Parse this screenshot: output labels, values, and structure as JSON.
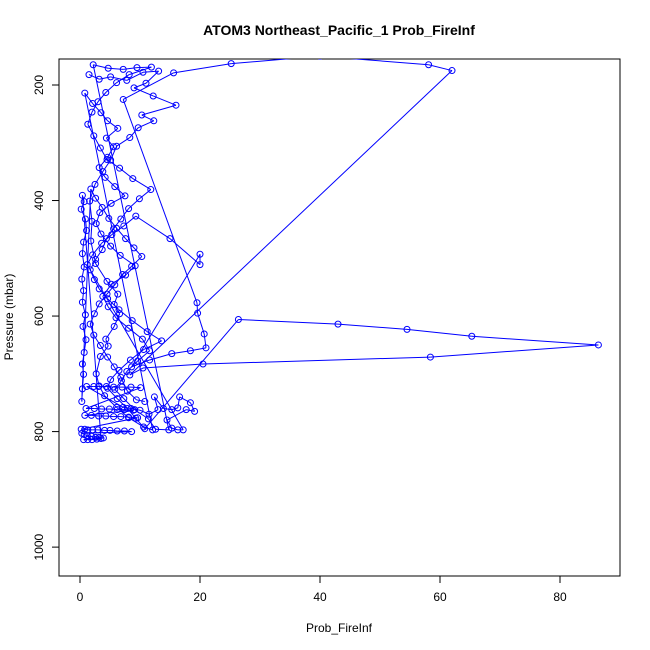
{
  "chart_data": {
    "type": "scatter",
    "title": "ATOM3 Northeast_Pacific_1 Prob_FireInf",
    "xlabel": "Prob_FireInf",
    "ylabel": "Pressure (mbar)",
    "xlim": [
      -3.5,
      90
    ],
    "ylim": [
      1050,
      155
    ],
    "y_reversed": true,
    "x_ticks": [
      0,
      20,
      40,
      60,
      80
    ],
    "y_ticks": [
      200,
      400,
      600,
      800,
      1000
    ],
    "grid": false,
    "legend": "none",
    "marker": "open-circle",
    "connected": true,
    "series": [
      {
        "color": "#0000ff",
        "points": [
          [
            1.5,
            182
          ],
          [
            3.2,
            190
          ],
          [
            5.1,
            186
          ],
          [
            7.8,
            192
          ],
          [
            10.5,
            178
          ],
          [
            13.1,
            176
          ],
          [
            11.0,
            197
          ],
          [
            9.0,
            205
          ],
          [
            12.2,
            219
          ],
          [
            16.0,
            235
          ],
          [
            10.3,
            252
          ],
          [
            12.3,
            262
          ],
          [
            9.7,
            274
          ],
          [
            8.3,
            291
          ],
          [
            6.1,
            306
          ],
          [
            5.1,
            330
          ],
          [
            3.8,
            350
          ],
          [
            2.5,
            372
          ],
          [
            1.6,
            401
          ],
          [
            2.0,
            436
          ],
          [
            1.8,
            470
          ],
          [
            2.6,
            509
          ],
          [
            4.5,
            540
          ],
          [
            6.3,
            562
          ],
          [
            5.7,
            580
          ],
          [
            6.6,
            596
          ],
          [
            5.7,
            618
          ],
          [
            4.3,
            640
          ],
          [
            4.7,
            652
          ],
          [
            3.4,
            670
          ],
          [
            2.7,
            700
          ],
          [
            3.2,
            721
          ],
          [
            4.1,
            738
          ],
          [
            6.1,
            758
          ],
          [
            8.1,
            776
          ],
          [
            10.6,
            792
          ],
          [
            12.1,
            797
          ],
          [
            0.8,
            214
          ],
          [
            2.1,
            232
          ],
          [
            3.5,
            248
          ],
          [
            4.6,
            262
          ],
          [
            6.3,
            275
          ],
          [
            4.4,
            292
          ],
          [
            5.6,
            307
          ],
          [
            4.6,
            325
          ],
          [
            3.2,
            343
          ],
          [
            4.2,
            360
          ],
          [
            5.8,
            376
          ],
          [
            7.5,
            392
          ],
          [
            5.2,
            405
          ],
          [
            3.3,
            421
          ],
          [
            2.7,
            440
          ],
          [
            3.5,
            458
          ],
          [
            5.1,
            479
          ],
          [
            6.7,
            495
          ],
          [
            9.2,
            513
          ],
          [
            7.6,
            529
          ],
          [
            5.2,
            545
          ],
          [
            3.8,
            566
          ],
          [
            4.7,
            584
          ],
          [
            6.0,
            603
          ],
          [
            8.1,
            621
          ],
          [
            10.4,
            640
          ],
          [
            11.6,
            660
          ],
          [
            9.6,
            678
          ],
          [
            7.8,
            696
          ],
          [
            6.9,
            712
          ],
          [
            5.8,
            727
          ],
          [
            7.3,
            743
          ],
          [
            9.1,
            762
          ],
          [
            11.4,
            778
          ],
          [
            12.6,
            796
          ],
          [
            14.8,
            797
          ],
          [
            2.2,
            165
          ],
          [
            4.7,
            171
          ],
          [
            7.2,
            173
          ],
          [
            9.5,
            170
          ],
          [
            11.9,
            169
          ],
          [
            8.2,
            182
          ],
          [
            6.1,
            196
          ],
          [
            4.3,
            213
          ],
          [
            3.0,
            229
          ],
          [
            2.0,
            247
          ],
          [
            1.3,
            268
          ],
          [
            2.3,
            288
          ],
          [
            3.4,
            309
          ],
          [
            4.5,
            329
          ],
          [
            6.6,
            344
          ],
          [
            8.8,
            362
          ],
          [
            11.8,
            381
          ],
          [
            9.9,
            397
          ],
          [
            8.1,
            414
          ],
          [
            6.8,
            432
          ],
          [
            5.6,
            449
          ],
          [
            4.4,
            466
          ],
          [
            3.7,
            485
          ],
          [
            2.6,
            502
          ],
          [
            1.7,
            520
          ],
          [
            2.4,
            537
          ],
          [
            3.2,
            553
          ],
          [
            4.6,
            570
          ],
          [
            6.5,
            589
          ],
          [
            8.7,
            608
          ],
          [
            11.2,
            627
          ],
          [
            13.6,
            643
          ],
          [
            10.6,
            658
          ],
          [
            8.4,
            676
          ],
          [
            6.5,
            694
          ],
          [
            5.1,
            710
          ],
          [
            4.6,
            725
          ],
          [
            6.2,
            743
          ],
          [
            7.9,
            760
          ],
          [
            9.3,
            777
          ],
          [
            10.8,
            795
          ],
          [
            26.4,
            606
          ],
          [
            43.0,
            614
          ],
          [
            54.5,
            623
          ],
          [
            65.3,
            635
          ],
          [
            86.4,
            650
          ],
          [
            58.4,
            671
          ],
          [
            20.5,
            683
          ],
          [
            10.5,
            690
          ],
          [
            8.3,
            702
          ],
          [
            62.0,
            175
          ],
          [
            58.1,
            165
          ],
          [
            40.0,
            150
          ],
          [
            25.2,
            163
          ],
          [
            15.6,
            179
          ],
          [
            7.2,
            225
          ],
          [
            19.5,
            577
          ],
          [
            19.6,
            595
          ],
          [
            20.7,
            631
          ],
          [
            21.0,
            655
          ],
          [
            18.4,
            660
          ],
          [
            15.3,
            665
          ],
          [
            11.6,
            676
          ],
          [
            8.6,
            688
          ],
          [
            20.0,
            493
          ],
          [
            20.0,
            511
          ],
          [
            15.0,
            466
          ],
          [
            9.3,
            427
          ],
          [
            7.3,
            444
          ],
          [
            5.3,
            459
          ],
          [
            3.6,
            474
          ],
          [
            2.1,
            494
          ],
          [
            1.2,
            511
          ],
          [
            17.2,
            797
          ],
          [
            16.3,
            797
          ],
          [
            15.3,
            794
          ],
          [
            14.5,
            780
          ],
          [
            17.7,
            762
          ],
          [
            19.1,
            765
          ],
          [
            18.4,
            750
          ],
          [
            16.6,
            740
          ],
          [
            16.3,
            759
          ],
          [
            15.3,
            762
          ],
          [
            13.9,
            760
          ],
          [
            12.4,
            740
          ],
          [
            13.0,
            762
          ],
          [
            11.5,
            770
          ],
          [
            10.0,
            763
          ],
          [
            8.5,
            760
          ],
          [
            7.2,
            758
          ],
          [
            1.1,
            722
          ],
          [
            2.3,
            722
          ],
          [
            3.1,
            722
          ],
          [
            4.4,
            722
          ],
          [
            5.6,
            723
          ],
          [
            7.0,
            723
          ],
          [
            8.5,
            723
          ],
          [
            10.1,
            724
          ],
          [
            1.0,
            760
          ],
          [
            2.4,
            760
          ],
          [
            3.6,
            761
          ],
          [
            4.9,
            761
          ],
          [
            6.2,
            762
          ],
          [
            7.4,
            762
          ],
          [
            8.9,
            763
          ],
          [
            0.8,
            772
          ],
          [
            1.9,
            772
          ],
          [
            3.1,
            773
          ],
          [
            4.3,
            773
          ],
          [
            5.6,
            774
          ],
          [
            6.8,
            774
          ],
          [
            8.1,
            775
          ],
          [
            9.6,
            776
          ],
          [
            0.2,
            796
          ],
          [
            0.8,
            796
          ],
          [
            1.3,
            797
          ],
          [
            2.1,
            797
          ],
          [
            3.0,
            797
          ],
          [
            4.1,
            798
          ],
          [
            5.0,
            798
          ],
          [
            6.2,
            799
          ],
          [
            7.4,
            799
          ],
          [
            8.6,
            800
          ],
          [
            0.3,
            803
          ],
          [
            0.7,
            805
          ],
          [
            1.2,
            807
          ],
          [
            1.9,
            808
          ],
          [
            2.6,
            810
          ],
          [
            3.2,
            810
          ],
          [
            3.9,
            811
          ],
          [
            0.6,
            814
          ],
          [
            1.3,
            814
          ],
          [
            2.0,
            814
          ],
          [
            2.8,
            813
          ],
          [
            3.5,
            812
          ],
          [
            0.4,
            391
          ],
          [
            0.7,
            402
          ],
          [
            0.2,
            415
          ],
          [
            0.9,
            432
          ],
          [
            1.1,
            452
          ],
          [
            0.6,
            472
          ],
          [
            0.4,
            492
          ],
          [
            0.7,
            515
          ],
          [
            0.3,
            536
          ],
          [
            0.6,
            556
          ],
          [
            0.4,
            576
          ],
          [
            0.9,
            598
          ],
          [
            0.5,
            618
          ],
          [
            1.0,
            641
          ],
          [
            0.7,
            663
          ],
          [
            0.4,
            683
          ],
          [
            0.6,
            701
          ],
          [
            0.4,
            726
          ],
          [
            0.3,
            748
          ],
          [
            1.8,
            380
          ],
          [
            2.6,
            396
          ],
          [
            3.7,
            412
          ],
          [
            4.8,
            431
          ],
          [
            6.1,
            448
          ],
          [
            7.6,
            466
          ],
          [
            9.0,
            482
          ],
          [
            10.3,
            497
          ],
          [
            8.6,
            514
          ],
          [
            7.1,
            528
          ],
          [
            5.8,
            546
          ],
          [
            4.5,
            562
          ],
          [
            3.2,
            579
          ],
          [
            2.4,
            596
          ],
          [
            1.7,
            614
          ],
          [
            2.3,
            633
          ],
          [
            3.4,
            651
          ],
          [
            4.6,
            671
          ],
          [
            5.7,
            688
          ],
          [
            6.8,
            706
          ],
          [
            7.9,
            730
          ],
          [
            9.4,
            745
          ],
          [
            10.8,
            748
          ]
        ]
      }
    ]
  }
}
